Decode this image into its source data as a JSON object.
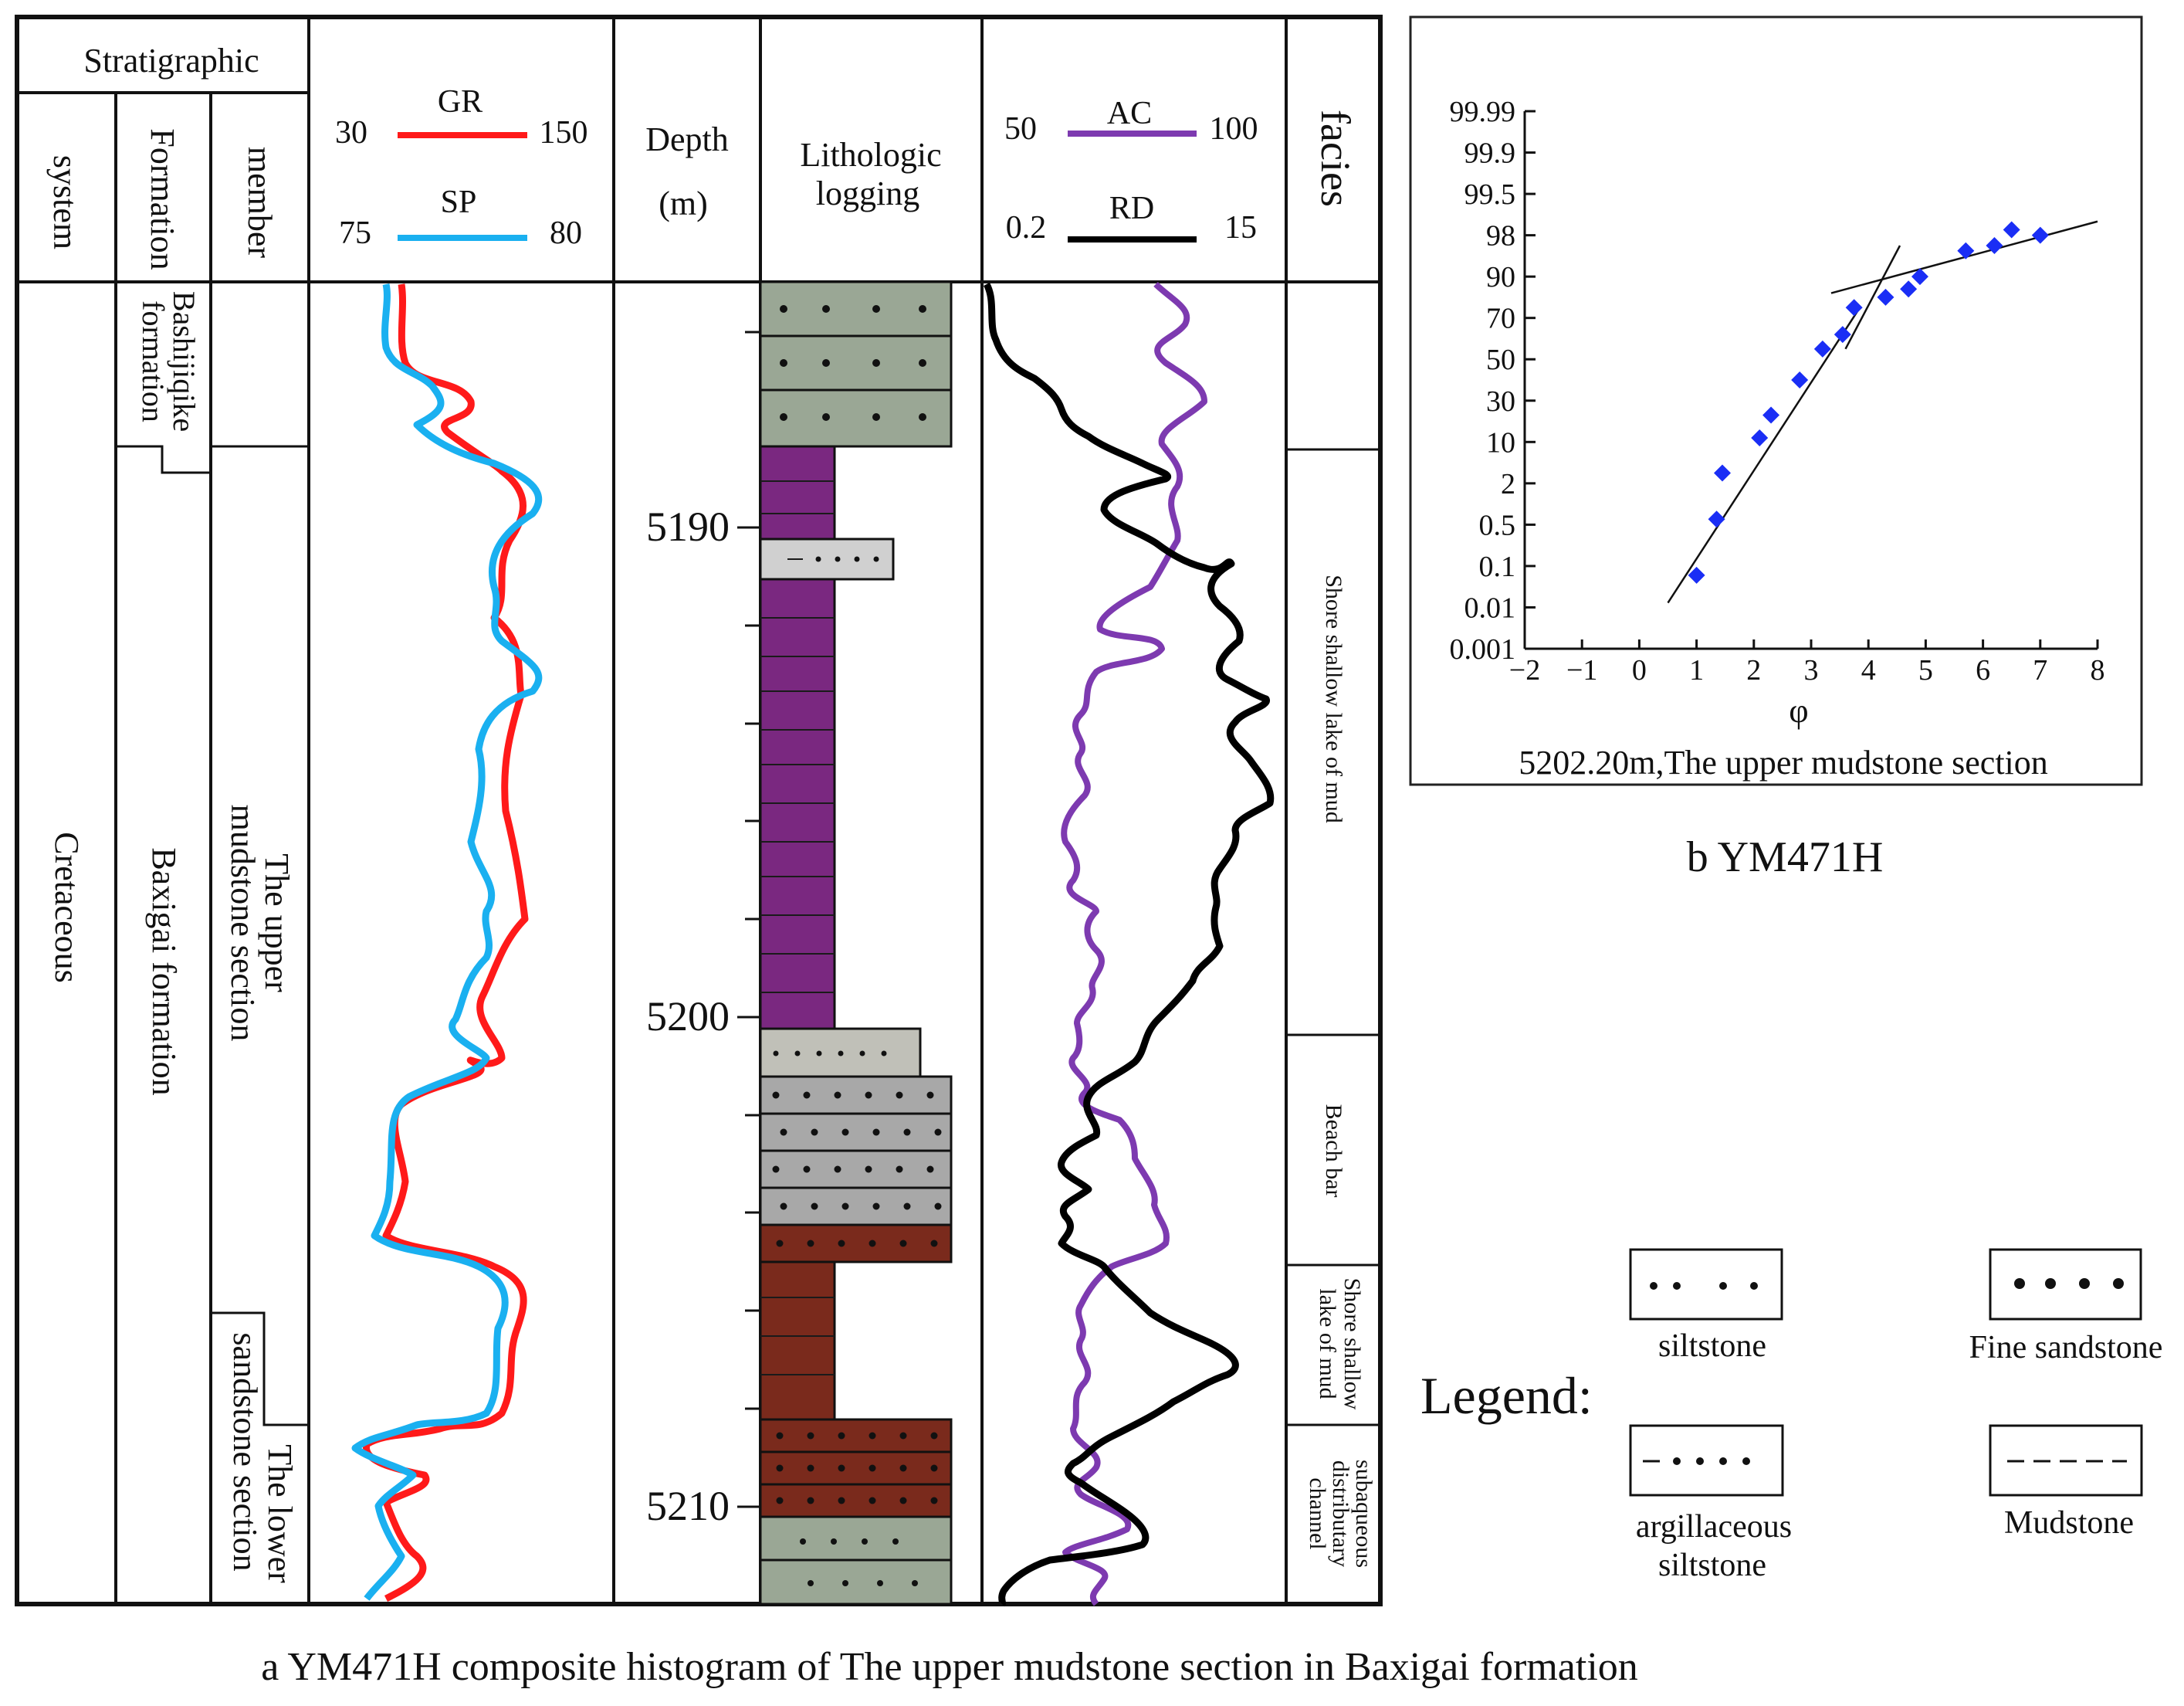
{
  "panel_a": {
    "header": {
      "stratigraphic": "Stratigraphic",
      "system": "system",
      "formation": "Formation",
      "member": "member",
      "depth": "Depth",
      "depth_unit": "(m)",
      "lithology": [
        "Lithologic",
        "logging"
      ],
      "facies": "facies"
    },
    "curve_scales": {
      "gr": {
        "name": "GR",
        "min": "30",
        "max": "150",
        "color": "#ff1a1a"
      },
      "sp": {
        "name": "SP",
        "min": "75",
        "max": "80",
        "color": "#1ab0f0"
      },
      "ac": {
        "name": "AC",
        "min": "50",
        "max": "100",
        "color": "#7d3ab0"
      },
      "rd": {
        "name": "RD",
        "min": "0.2",
        "max": "15",
        "color": "#000000"
      }
    },
    "system_label": "Cretaceous",
    "formations": [
      {
        "lines": [
          "Bashijiqike",
          "formation"
        ]
      },
      {
        "lines": [
          "Baxigai formation"
        ]
      }
    ],
    "members": [
      {
        "lines": [
          "The upper",
          "mudstone section"
        ]
      },
      {
        "lines": [
          "The lower",
          "sandstone section"
        ]
      }
    ],
    "depth_labels": [
      "5190",
      "5200",
      "5210"
    ],
    "facies": [
      {
        "lines": [
          "Shore shallow lake of mud"
        ]
      },
      {
        "lines": [
          "Beach bar"
        ]
      },
      {
        "lines": [
          "Shore shallow",
          "lake of mud"
        ]
      },
      {
        "lines": [
          "subaqueous",
          "distributary",
          "channel"
        ]
      }
    ],
    "lithology_colors": {
      "green_grey": "#9aa795",
      "purple": "#7a2880",
      "light_grey": "#d0d0d0",
      "grey": "#a8a8a8",
      "brown": "#7a2a1c"
    },
    "caption": "a YM471H composite histogram of The upper mudstone section in Baxigai formation"
  },
  "panel_b": {
    "caption": "b  YM471H",
    "inset_caption": "5202.20m,The upper mudstone section",
    "point_color": "#1a2ef5"
  },
  "chart_data": {
    "type": "scatter",
    "title": "",
    "xlabel": "φ",
    "ylabel": "",
    "x_ticks": [
      "−2",
      "−1",
      "0",
      "1",
      "2",
      "3",
      "4",
      "5",
      "6",
      "7",
      "8"
    ],
    "xlim": [
      -2,
      8
    ],
    "y_scale": "probability",
    "y_ticks": [
      "0.001",
      "0.01",
      "0.1",
      "0.5",
      "2",
      "10",
      "30",
      "50",
      "70",
      "90",
      "98",
      "99.5",
      "99.9",
      "99.99"
    ],
    "grid": false,
    "points": [
      {
        "x": 1.0,
        "y": 0.08
      },
      {
        "x": 1.35,
        "y": 0.7
      },
      {
        "x": 1.45,
        "y": 4
      },
      {
        "x": 2.1,
        "y": 12
      },
      {
        "x": 2.3,
        "y": 23
      },
      {
        "x": 2.8,
        "y": 40
      },
      {
        "x": 3.2,
        "y": 55
      },
      {
        "x": 3.55,
        "y": 62
      },
      {
        "x": 3.75,
        "y": 75
      },
      {
        "x": 4.3,
        "y": 80
      },
      {
        "x": 4.7,
        "y": 84
      },
      {
        "x": 4.9,
        "y": 90
      },
      {
        "x": 5.7,
        "y": 95
      },
      {
        "x": 6.2,
        "y": 96
      },
      {
        "x": 6.5,
        "y": 98.2
      },
      {
        "x": 7.0,
        "y": 98
      }
    ],
    "trend_lines": [
      {
        "x": [
          0.5,
          3.85
        ],
        "y": [
          0.02,
          75
        ]
      },
      {
        "x": [
          3.6,
          4.55
        ],
        "y": [
          55,
          96
        ]
      },
      {
        "x": [
          3.35,
          8.0
        ],
        "y": [
          82,
          98.5
        ]
      }
    ]
  }
}
